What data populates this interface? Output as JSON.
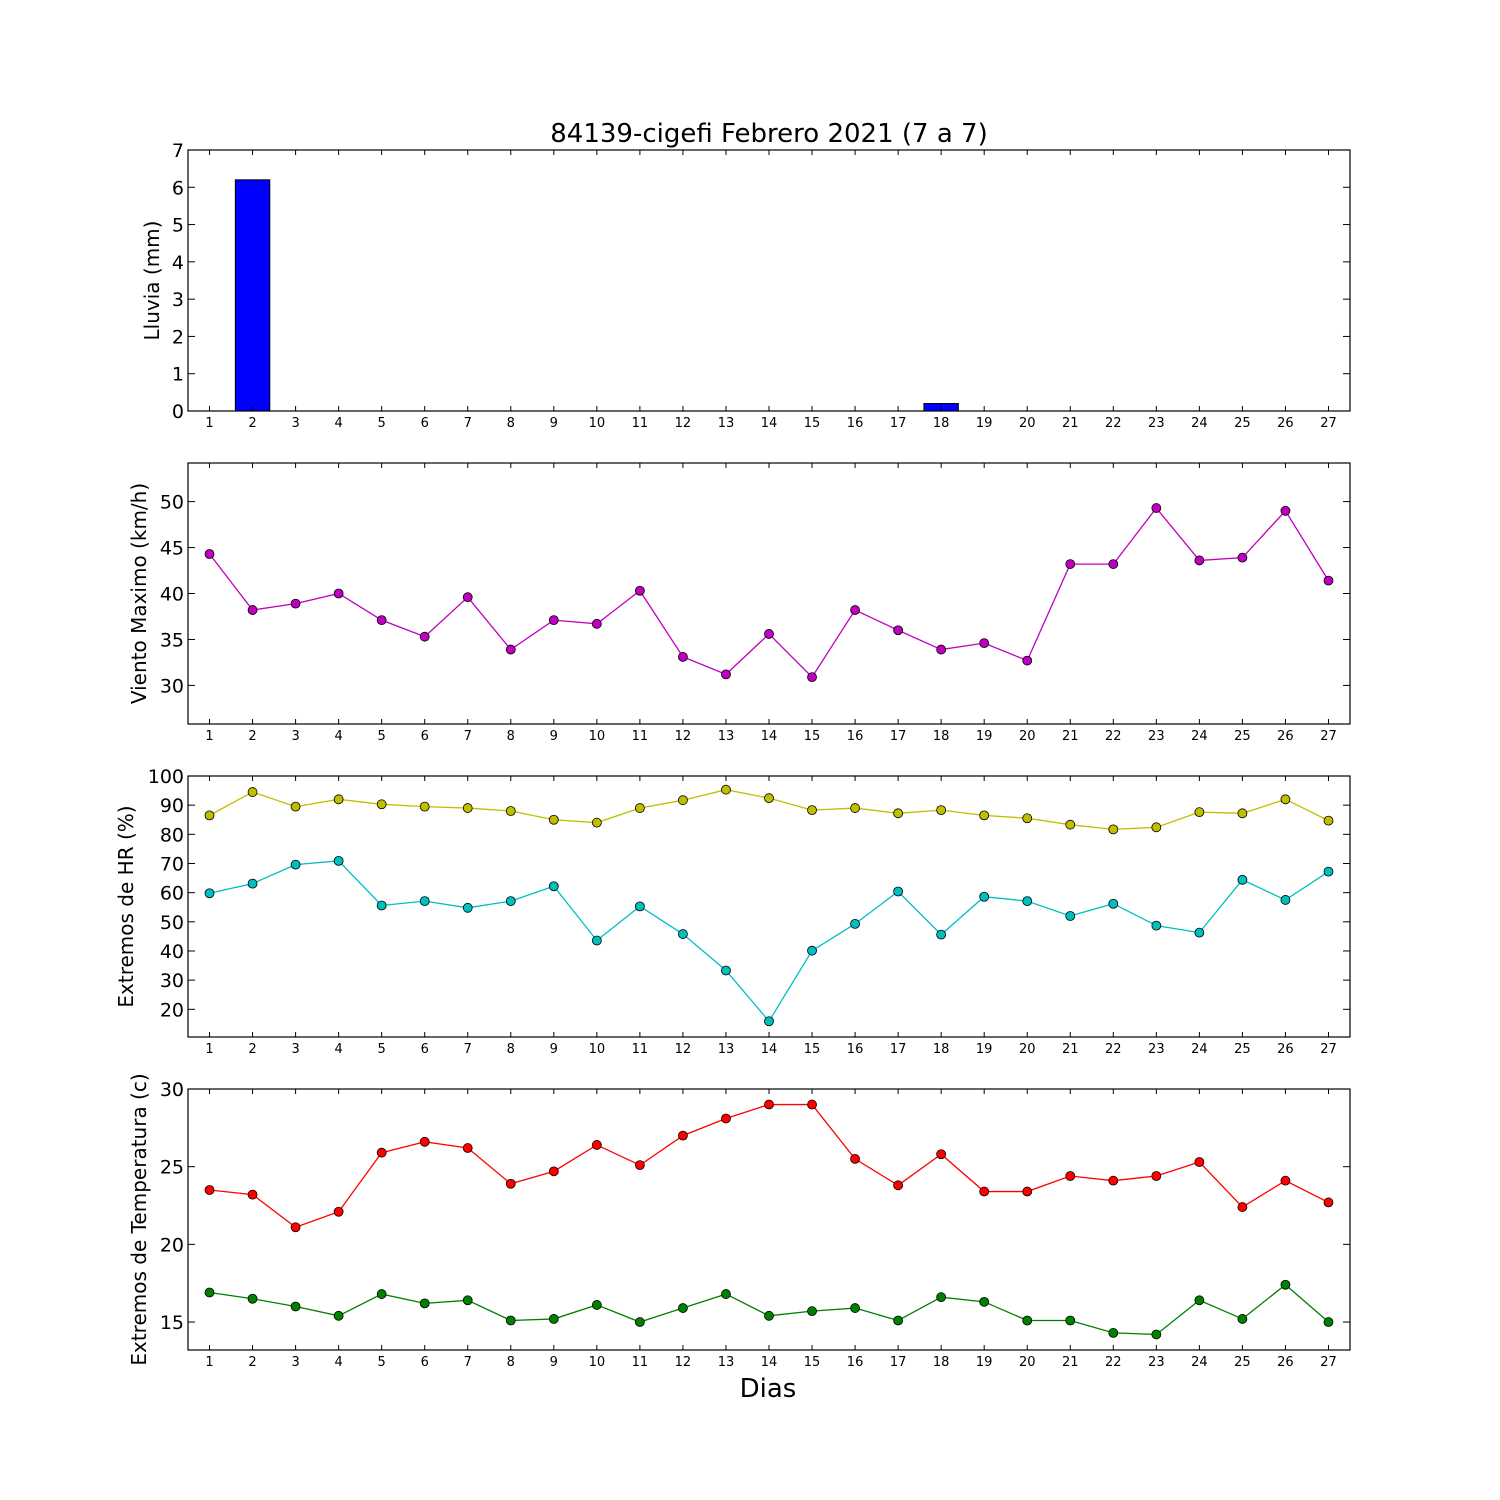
{
  "figure": {
    "title": "84139-cigefi Febrero 2021  (7 a 7)",
    "xlabel": "Dias"
  },
  "chart_data": [
    {
      "type": "bar",
      "ylabel": "Lluvia (mm)",
      "ylim": [
        0,
        7
      ],
      "yticks": [
        0,
        1,
        2,
        3,
        4,
        5,
        6,
        7
      ],
      "categories": [
        1,
        2,
        3,
        4,
        5,
        6,
        7,
        8,
        9,
        10,
        11,
        12,
        13,
        14,
        15,
        16,
        17,
        18,
        19,
        20,
        21,
        22,
        23,
        24,
        25,
        26,
        27
      ],
      "series": [
        {
          "color": "#0000ff",
          "values": [
            0,
            6.2,
            0,
            0,
            0,
            0,
            0,
            0,
            0,
            0,
            0,
            0,
            0,
            0,
            0,
            0,
            0,
            0.2,
            0,
            0,
            0,
            0,
            0,
            0,
            0,
            0,
            0
          ]
        }
      ]
    },
    {
      "type": "line",
      "ylabel": "Viento Maximo (km/h)",
      "ylim": [
        25.8,
        54.2
      ],
      "yticks": [
        30,
        35,
        40,
        45,
        50
      ],
      "categories": [
        1,
        2,
        3,
        4,
        5,
        6,
        7,
        8,
        9,
        10,
        11,
        12,
        13,
        14,
        15,
        16,
        17,
        18,
        19,
        20,
        21,
        22,
        23,
        24,
        25,
        26,
        27
      ],
      "series": [
        {
          "color": "#bf00bf",
          "values": [
            44.3,
            38.2,
            38.9,
            40.0,
            37.1,
            35.3,
            39.6,
            33.9,
            37.1,
            36.7,
            40.3,
            33.1,
            31.2,
            35.6,
            30.9,
            38.2,
            36.0,
            33.9,
            34.6,
            32.7,
            43.2,
            43.2,
            49.3,
            43.6,
            43.9,
            49.0,
            41.4
          ]
        }
      ]
    },
    {
      "type": "line",
      "ylabel": "Extremos de HR (%)",
      "ylim": [
        10.5,
        100
      ],
      "yticks": [
        20,
        30,
        40,
        50,
        60,
        70,
        80,
        90,
        100
      ],
      "categories": [
        1,
        2,
        3,
        4,
        5,
        6,
        7,
        8,
        9,
        10,
        11,
        12,
        13,
        14,
        15,
        16,
        17,
        18,
        19,
        20,
        21,
        22,
        23,
        24,
        25,
        26,
        27
      ],
      "series": [
        {
          "color": "#bfbf00",
          "values": [
            86.5,
            94.5,
            89.5,
            92,
            90.3,
            89.5,
            89,
            88,
            85,
            84,
            89,
            91.7,
            95.3,
            92.4,
            88.3,
            89,
            87.2,
            88.3,
            86.5,
            85.5,
            83.3,
            81.7,
            82.4,
            87.6,
            87.2,
            92,
            84.7
          ]
        },
        {
          "color": "#00bfbf",
          "values": [
            59.8,
            63.1,
            69.6,
            70.9,
            55.6,
            57.1,
            54.8,
            57.1,
            62.2,
            43.6,
            55.3,
            45.8,
            33.3,
            15.9,
            40.1,
            49.3,
            60.4,
            45.6,
            58.6,
            57.1,
            52,
            56.2,
            48.7,
            46.3,
            64.4,
            57.5,
            67.2
          ]
        }
      ]
    },
    {
      "type": "line",
      "ylabel": "Extremos de Temperatura (c)",
      "ylim": [
        13.2,
        30
      ],
      "yticks": [
        15,
        20,
        25,
        30
      ],
      "categories": [
        1,
        2,
        3,
        4,
        5,
        6,
        7,
        8,
        9,
        10,
        11,
        12,
        13,
        14,
        15,
        16,
        17,
        18,
        19,
        20,
        21,
        22,
        23,
        24,
        25,
        26,
        27
      ],
      "series": [
        {
          "color": "#ff0000",
          "values": [
            23.5,
            23.2,
            21.1,
            22.1,
            25.9,
            26.6,
            26.2,
            23.9,
            24.7,
            26.4,
            25.1,
            27,
            28.1,
            29,
            29,
            25.5,
            23.8,
            25.8,
            23.4,
            23.4,
            24.4,
            24.1,
            24.4,
            25.3,
            22.4,
            24.1,
            22.7
          ]
        },
        {
          "color": "#008000",
          "values": [
            16.9,
            16.5,
            16,
            15.4,
            16.8,
            16.2,
            16.4,
            15.1,
            15.2,
            16.1,
            15,
            15.9,
            16.8,
            15.4,
            15.7,
            15.9,
            15.1,
            16.6,
            16.3,
            15.1,
            15.1,
            14.3,
            14.2,
            16.4,
            15.2,
            17.4,
            15
          ]
        }
      ]
    }
  ]
}
